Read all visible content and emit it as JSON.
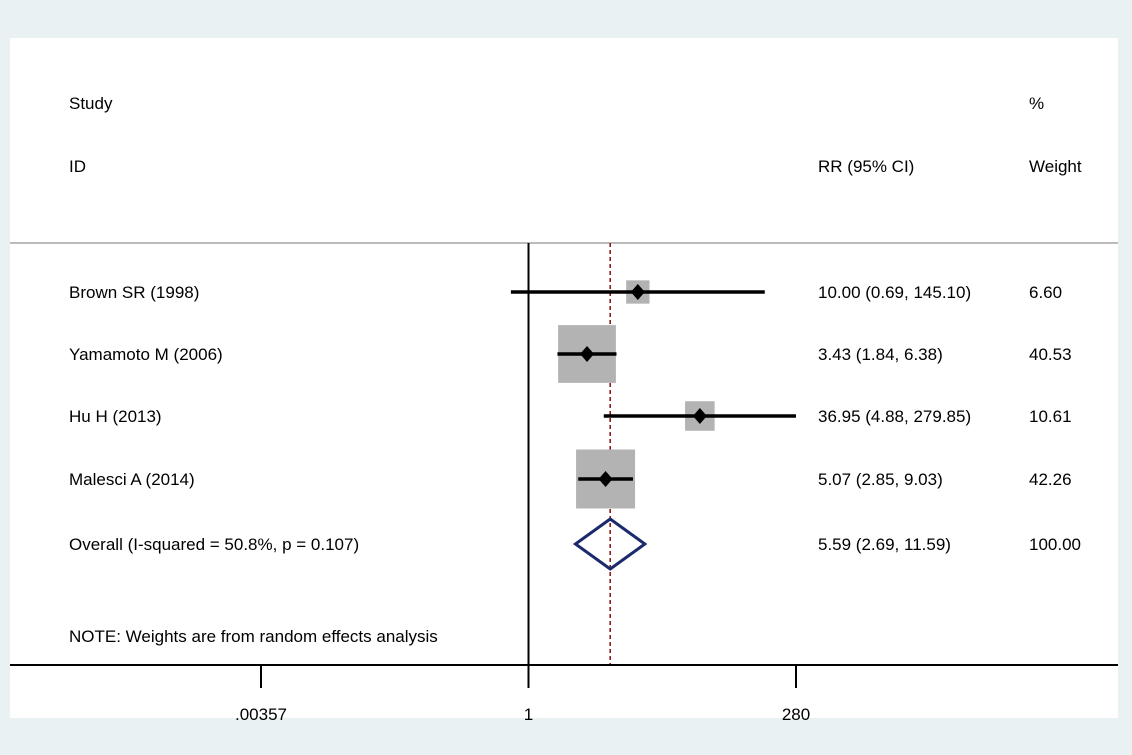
{
  "header": {
    "study_line1": "Study",
    "study_line2": "ID",
    "effect_label": "RR (95% CI)",
    "weight_line1": "%",
    "weight_line2": "Weight"
  },
  "note": "NOTE: Weights are from random effects analysis",
  "colors": {
    "background": "#eaf1f3",
    "panel": "#ffffff",
    "ci_line": "#000000",
    "weight_box": "#b3b3b3",
    "overall_diamond": "#1a2a6c",
    "overall_reference_line": "#8b1c1c",
    "header_rule": "#bbbbbb"
  },
  "chart_data": {
    "type": "forest",
    "measure": "RR",
    "scale": "log",
    "xlim": [
      0.00357,
      280
    ],
    "xticks": [
      {
        "value": 0.00357,
        "label": ".00357"
      },
      {
        "value": 1,
        "label": "1"
      },
      {
        "value": 280,
        "label": "280"
      }
    ],
    "null_line": 1,
    "studies": [
      {
        "name": "Brown SR (1998)",
        "rr": 10.0,
        "lo": 0.69,
        "hi": 145.1,
        "ci_text": "10.00 (0.69, 145.10)",
        "weight": 6.6,
        "weight_text": "6.60"
      },
      {
        "name": "Yamamoto M (2006)",
        "rr": 3.43,
        "lo": 1.84,
        "hi": 6.38,
        "ci_text": "3.43 (1.84, 6.38)",
        "weight": 40.53,
        "weight_text": "40.53"
      },
      {
        "name": "Hu H (2013)",
        "rr": 36.95,
        "lo": 4.88,
        "hi": 279.85,
        "ci_text": "36.95 (4.88, 279.85)",
        "weight": 10.61,
        "weight_text": "10.61"
      },
      {
        "name": "Malesci A (2014)",
        "rr": 5.07,
        "lo": 2.85,
        "hi": 9.03,
        "ci_text": "5.07 (2.85, 9.03)",
        "weight": 42.26,
        "weight_text": "42.26"
      }
    ],
    "overall": {
      "label": "Overall  (I-squared = 50.8%, p = 0.107)",
      "rr": 5.59,
      "lo": 2.69,
      "hi": 11.59,
      "ci_text": "5.59 (2.69, 11.59)",
      "weight_text": "100.00"
    }
  }
}
